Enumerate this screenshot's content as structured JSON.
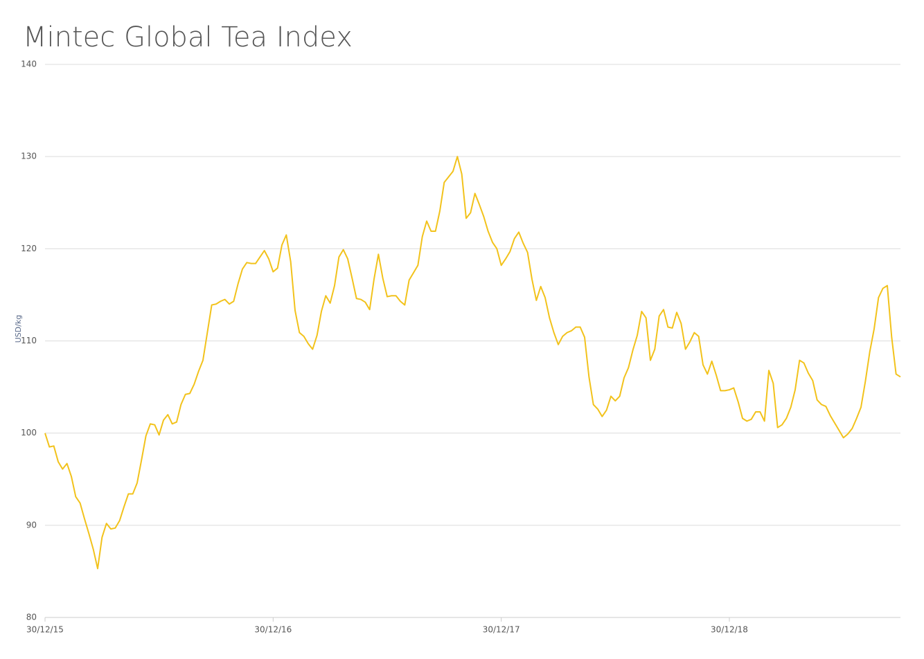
{
  "chart_data": {
    "type": "line",
    "title": "Mintec Global Tea Index",
    "y_label": "USD/kg",
    "categories": [
      "30/12/15",
      null,
      null,
      null,
      null,
      null,
      null,
      null,
      null,
      null,
      null,
      null,
      null,
      null,
      null,
      null,
      null,
      null,
      null,
      null,
      null,
      null,
      null,
      null,
      null,
      null,
      null,
      null,
      null,
      null,
      null,
      null,
      null,
      null,
      null,
      null,
      null,
      null,
      null,
      null,
      null,
      null,
      null,
      null,
      null,
      null,
      null,
      null,
      null,
      null,
      null,
      null,
      "30/12/16",
      null,
      null,
      null,
      null,
      null,
      null,
      null,
      null,
      null,
      null,
      null,
      null,
      null,
      null,
      null,
      null,
      null,
      null,
      null,
      null,
      null,
      null,
      null,
      null,
      null,
      null,
      null,
      null,
      null,
      null,
      null,
      null,
      null,
      null,
      null,
      null,
      null,
      null,
      null,
      null,
      null,
      null,
      null,
      null,
      null,
      null,
      null,
      null,
      null,
      null,
      null,
      "30/12/17",
      null,
      null,
      null,
      null,
      null,
      null,
      null,
      null,
      null,
      null,
      null,
      null,
      null,
      null,
      null,
      null,
      null,
      null,
      null,
      null,
      null,
      null,
      null,
      null,
      null,
      null,
      null,
      null,
      null,
      null,
      null,
      null,
      null,
      null,
      null,
      null,
      null,
      null,
      null,
      null,
      null,
      null,
      null,
      null,
      null,
      null,
      null,
      null,
      null,
      null,
      null,
      "30/12/18",
      null,
      null,
      null,
      null,
      null,
      null,
      null,
      null,
      null,
      null,
      null,
      null,
      null,
      null,
      null,
      null,
      null,
      null,
      null,
      null,
      null,
      null,
      null,
      null,
      null,
      null,
      null,
      null,
      null,
      null,
      null,
      null,
      null,
      null,
      null,
      null,
      null,
      null,
      null
    ],
    "series": [
      {
        "name": "Mintec Global Tea Index",
        "color": "#f2c21b",
        "values": [
          100.0,
          98.5,
          98.6,
          96.9,
          96.1,
          96.7,
          95.3,
          93.1,
          92.4,
          90.7,
          89.1,
          87.4,
          85.3,
          88.7,
          90.2,
          89.6,
          89.7,
          90.5,
          92.0,
          93.4,
          93.4,
          94.6,
          97.1,
          99.7,
          101.0,
          100.9,
          99.8,
          101.4,
          102.0,
          101.0,
          101.2,
          103.1,
          104.2,
          104.3,
          105.3,
          106.7,
          107.9,
          110.9,
          113.9,
          114.0,
          114.3,
          114.5,
          114.0,
          114.3,
          116.2,
          117.8,
          118.5,
          118.4,
          118.4,
          119.1,
          119.8,
          118.9,
          117.5,
          117.9,
          120.4,
          121.5,
          118.6,
          113.3,
          110.9,
          110.5,
          109.7,
          109.1,
          110.6,
          113.2,
          114.9,
          114.1,
          116.0,
          119.1,
          119.9,
          118.9,
          116.8,
          114.6,
          114.5,
          114.2,
          113.4,
          116.7,
          119.4,
          116.8,
          114.8,
          114.9,
          114.9,
          114.3,
          113.9,
          116.6,
          117.4,
          118.2,
          121.3,
          123.0,
          121.9,
          121.9,
          124.1,
          127.2,
          127.8,
          128.4,
          130.0,
          128.1,
          123.3,
          123.9,
          126.0,
          124.8,
          123.5,
          121.9,
          120.7,
          120.0,
          118.2,
          118.9,
          119.7,
          121.1,
          121.8,
          120.6,
          119.6,
          116.7,
          114.4,
          115.9,
          114.7,
          112.5,
          110.9,
          109.6,
          110.5,
          110.9,
          111.1,
          111.5,
          111.5,
          110.4,
          106.1,
          103.1,
          102.6,
          101.8,
          102.5,
          104.0,
          103.5,
          104.0,
          106.0,
          107.1,
          109.0,
          110.6,
          113.2,
          112.5,
          107.9,
          109.1,
          112.7,
          113.4,
          111.5,
          111.4,
          113.1,
          111.9,
          109.1,
          109.9,
          110.9,
          110.5,
          107.4,
          106.4,
          107.8,
          106.3,
          104.6,
          104.6,
          104.7,
          104.9,
          103.4,
          101.6,
          101.3,
          101.5,
          102.3,
          102.3,
          101.3,
          106.8,
          105.4,
          100.6,
          100.9,
          101.6,
          102.8,
          104.7,
          107.9,
          107.6,
          106.5,
          105.7,
          103.6,
          103.1,
          102.9,
          101.9,
          101.1,
          100.3,
          99.5,
          99.9,
          100.5,
          101.6,
          102.8,
          105.6,
          108.8,
          111.3,
          114.7,
          115.7,
          116.0,
          110.4,
          106.4,
          106.1
        ]
      }
    ],
    "ylim": [
      80,
      140
    ],
    "yticks": [
      80,
      90,
      100,
      110,
      120,
      130,
      140
    ],
    "grid": true
  }
}
